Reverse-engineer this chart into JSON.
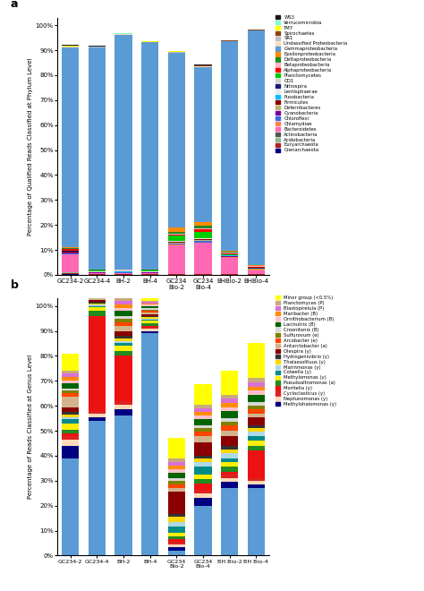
{
  "panel_a": {
    "ylabel": "Percentage of Qualified Reads Classified at Phylum Level",
    "categories": [
      "GC234-2",
      "GC234-4",
      "BH-2",
      "BH-4",
      "GC234\nBio-2",
      "GC234\nBio-4",
      "BHBio-2",
      "BHBio-4"
    ],
    "color_map": {
      "Crenarchaeota": "#000080",
      "Euryarchaeota": "#b22222",
      "Acidobacteria": "#8fbc8f",
      "Actinobacteria": "#555555",
      "Bacteroidetes": "#ff69b4",
      "Chlamydiae": "#ff7f50",
      "Chloroflexi": "#4169e1",
      "Cyanobacteria": "#7b0099",
      "Deferribacteres": "#bdb76b",
      "Firmicutes": "#8b0000",
      "Fusobacteria": "#00bfff",
      "Lentisphaerae": "#e8e8e8",
      "Nitrospira": "#191970",
      "OD1": "#d3d3d3",
      "Planctomycetes": "#00cc00",
      "Alphaproteobacteria": "#ff0000",
      "Betaproteobacteria": "#ffb6c1",
      "Deltaproteobacteria": "#228b22",
      "Epsilonproteobacteria": "#ff8c00",
      "Gammaproteobacteria": "#5b9bd5",
      "Undassified Proteobacteria": "#ffdab9",
      "SR1": "#c0c0c0",
      "Spirochaetes": "#8b4513",
      "TM7": "#ffff00",
      "Verrucomicrobia": "#7fffd4",
      "WS3": "#1a1a1a"
    },
    "data": {
      "Crenarchaeota": [
        0.3,
        0.1,
        0.1,
        0.1,
        0.1,
        0.1,
        0.1,
        0.1
      ],
      "Euryarchaeota": [
        0.3,
        0.1,
        0.1,
        0.1,
        0.1,
        0.1,
        0.1,
        0.1
      ],
      "Acidobacteria": [
        0.3,
        0.1,
        0.1,
        0.1,
        0.1,
        0.1,
        0.1,
        0.1
      ],
      "Actinobacteria": [
        0.2,
        0.1,
        0.1,
        0.1,
        0.1,
        0.1,
        0.1,
        0.1
      ],
      "Bacteroidetes": [
        7.0,
        0.2,
        0.3,
        0.2,
        11.5,
        12.5,
        6.5,
        1.5
      ],
      "Chlamydiae": [
        0.1,
        0.1,
        0.1,
        0.1,
        0.1,
        0.1,
        0.1,
        0.1
      ],
      "Chloroflexi": [
        0.2,
        0.1,
        0.1,
        0.1,
        0.5,
        0.5,
        0.2,
        0.1
      ],
      "Cyanobacteria": [
        0.5,
        0.1,
        0.1,
        0.1,
        0.2,
        0.2,
        0.2,
        0.1
      ],
      "Deferribacteres": [
        0.1,
        0.1,
        0.1,
        0.1,
        0.2,
        0.2,
        0.1,
        0.1
      ],
      "Firmicutes": [
        0.2,
        0.1,
        0.1,
        0.1,
        0.3,
        0.3,
        0.1,
        0.1
      ],
      "Fusobacteria": [
        0.1,
        0.1,
        0.1,
        0.1,
        0.2,
        0.2,
        0.1,
        0.1
      ],
      "Lentisphaerae": [
        0.1,
        0.1,
        0.1,
        0.1,
        0.1,
        0.1,
        0.1,
        0.1
      ],
      "Nitrospira": [
        0.1,
        0.1,
        0.1,
        0.1,
        0.1,
        0.1,
        0.1,
        0.1
      ],
      "OD1": [
        0.1,
        0.1,
        0.1,
        0.1,
        0.1,
        0.1,
        0.1,
        0.1
      ],
      "Planctomycetes": [
        0.1,
        0.1,
        0.1,
        0.1,
        2.0,
        2.5,
        0.2,
        0.2
      ],
      "Alphaproteobacteria": [
        0.5,
        0.2,
        0.2,
        0.2,
        0.5,
        1.0,
        0.5,
        0.3
      ],
      "Betaproteobacteria": [
        0.2,
        0.1,
        0.1,
        0.1,
        0.3,
        0.3,
        0.2,
        0.1
      ],
      "Deltaproteobacteria": [
        0.3,
        0.1,
        0.1,
        0.1,
        0.8,
        1.2,
        0.3,
        0.2
      ],
      "Epsilonproteobacteria": [
        0.5,
        0.1,
        0.1,
        0.1,
        1.5,
        1.5,
        0.3,
        0.2
      ],
      "Gammaproteobacteria": [
        80.0,
        89.0,
        94.0,
        91.0,
        70.0,
        62.0,
        84.0,
        94.0
      ],
      "Undassified Proteobacteria": [
        0.2,
        0.1,
        0.1,
        0.1,
        0.3,
        0.3,
        0.1,
        0.1
      ],
      "SR1": [
        0.1,
        0.1,
        0.1,
        0.1,
        0.1,
        0.1,
        0.1,
        0.1
      ],
      "Spirochaetes": [
        0.1,
        0.1,
        0.1,
        0.1,
        0.2,
        0.2,
        0.1,
        0.1
      ],
      "TM7": [
        0.1,
        0.1,
        0.1,
        0.1,
        0.1,
        0.1,
        0.1,
        0.1
      ],
      "Verrucomicrobia": [
        0.2,
        0.1,
        0.1,
        0.1,
        0.1,
        0.1,
        0.1,
        0.1
      ],
      "WS3": [
        0.1,
        0.1,
        0.1,
        0.1,
        0.1,
        0.1,
        0.1,
        0.1
      ]
    }
  },
  "panel_b": {
    "ylabel": "Percentage of Reads Classified at Genus Level",
    "categories": [
      "GC234-2",
      "GC234-4",
      "BH-2",
      "BH-4",
      "GC234\nBio-2",
      "GC234\nBio-4",
      "BH Bio-2",
      "BH Bio-4"
    ],
    "base_color": "#5b9bd5",
    "base": [
      39.0,
      54.0,
      56.0,
      89.0,
      2.0,
      20.0,
      27.0,
      27.0
    ],
    "color_map": {
      "Methylohalomonas (y)": "#000080",
      "Neptunomonas (y)": "#ffdab9",
      "Cycloclasticus (y)": "#dd2222",
      "Moritella (y)": "#ee1111",
      "Pseudoaltromonas (a)": "#228b22",
      "Methylomonas (y)": "#ffee00",
      "Colwella (y)": "#008b8b",
      "Marinmonas (y)": "#add8e6",
      "Thalassolituus (y)": "#ffd700",
      "Hydrogenivibrio (y)": "#333333",
      "Olespira (y)": "#8b0000",
      "Antarctobacter (a)": "#d2b48c",
      "Arcobacter (e)": "#ff4500",
      "Sulfurovum (e)": "#808000",
      "Croonitonix (B)": "#d8d8d8",
      "Lacinutrix (B)": "#006400",
      "Ornithobacterium (B)": "#ffc0cb",
      "Maribacter (B)": "#ff8c00",
      "Blastopirelula (P)": "#da70d6",
      "Planctomyces (P)": "#c8a97e",
      "Minor group (<0.5%)": "#ffff00"
    },
    "data": {
      "Methylohalomonas (y)": [
        5.0,
        1.5,
        2.5,
        1.0,
        1.5,
        3.0,
        2.5,
        1.5
      ],
      "Neptunomonas (y)": [
        2.5,
        1.5,
        2.0,
        1.0,
        1.0,
        2.0,
        1.5,
        1.5
      ],
      "Cycloclasticus (y)": [
        1.5,
        1.0,
        1.5,
        0.5,
        1.0,
        1.5,
        1.5,
        1.0
      ],
      "Moritella (y)": [
        1.0,
        38.0,
        18.0,
        0.5,
        1.0,
        2.5,
        1.0,
        11.0
      ],
      "Pseudoaltromonas (a)": [
        1.5,
        2.0,
        2.0,
        1.0,
        1.0,
        1.5,
        2.0,
        2.0
      ],
      "Methylomonas (y)": [
        2.5,
        1.5,
        2.0,
        1.0,
        1.5,
        2.0,
        2.0,
        2.0
      ],
      "Colwella (y)": [
        1.5,
        0.5,
        1.0,
        0.5,
        2.5,
        3.0,
        1.5,
        2.0
      ],
      "Marinmonas (y)": [
        1.0,
        0.5,
        1.0,
        0.5,
        2.0,
        2.0,
        2.0,
        1.5
      ],
      "Thalassolituus (y)": [
        1.0,
        0.5,
        1.0,
        0.5,
        2.0,
        1.5,
        1.5,
        1.5
      ],
      "Hydrogenivibrio (y)": [
        1.0,
        0.5,
        1.0,
        0.5,
        1.0,
        1.0,
        1.5,
        1.0
      ],
      "Olespira (y)": [
        2.0,
        1.0,
        2.0,
        0.5,
        9.0,
        5.5,
        4.0,
        3.5
      ],
      "Antarctobacter (a)": [
        4.0,
        2.0,
        2.0,
        1.0,
        1.5,
        2.5,
        2.0,
        1.5
      ],
      "Arcobacter (e)": [
        1.5,
        1.0,
        1.5,
        0.5,
        1.5,
        1.5,
        2.0,
        1.5
      ],
      "Sulfurovum (e)": [
        1.0,
        0.5,
        1.5,
        0.5,
        1.5,
        1.5,
        1.5,
        1.5
      ],
      "Croonitonix (B)": [
        1.0,
        0.5,
        1.0,
        0.5,
        1.0,
        1.0,
        1.5,
        1.5
      ],
      "Lacinutrix (B)": [
        2.0,
        1.5,
        2.0,
        1.0,
        2.0,
        2.5,
        3.0,
        3.0
      ],
      "Ornithobacterium (B)": [
        1.0,
        0.5,
        1.0,
        0.5,
        1.5,
        1.5,
        1.5,
        1.5
      ],
      "Maribacter (B)": [
        1.5,
        1.0,
        1.5,
        0.5,
        1.5,
        1.5,
        1.5,
        1.5
      ],
      "Blastopirelula (P)": [
        1.5,
        1.0,
        1.5,
        0.5,
        1.5,
        1.5,
        2.0,
        2.0
      ],
      "Planctomyces (P)": [
        1.0,
        0.5,
        1.0,
        0.5,
        1.5,
        1.5,
        1.5,
        1.5
      ],
      "Minor group (<0.5%)": [
        7.0,
        6.5,
        8.0,
        6.5,
        8.0,
        8.0,
        9.5,
        14.0
      ]
    }
  }
}
